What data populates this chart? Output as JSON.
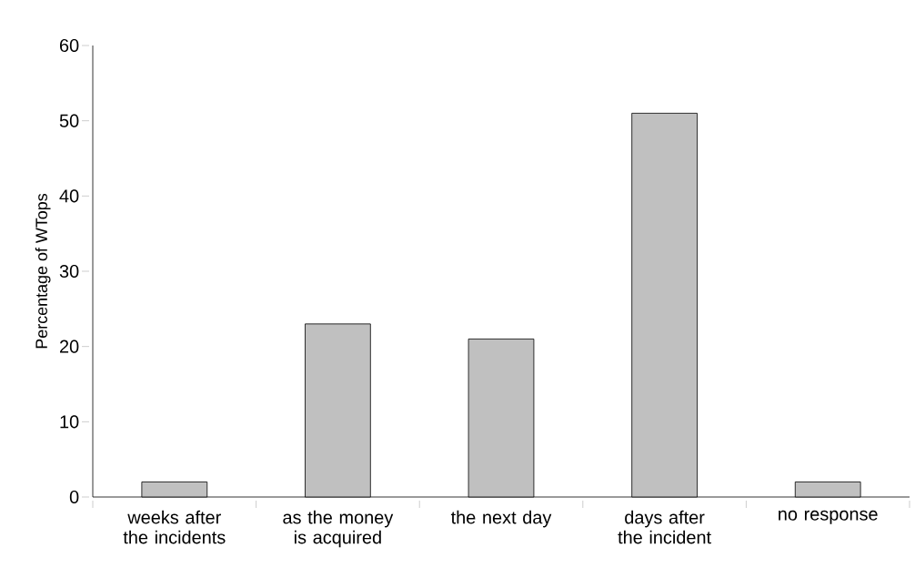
{
  "chart_data": {
    "type": "bar",
    "ylabel": "Percentage of WTops",
    "categories": [
      "weeks after the incidents",
      "as the money is acquired",
      "the next day",
      "days after the incident",
      "no response"
    ],
    "values": [
      2,
      23,
      21,
      51,
      2
    ],
    "color": "#c0c0c0",
    "ylim": [
      0,
      60
    ],
    "yticks": [
      0,
      10,
      20,
      30,
      40,
      50,
      60
    ],
    "grid": false
  }
}
